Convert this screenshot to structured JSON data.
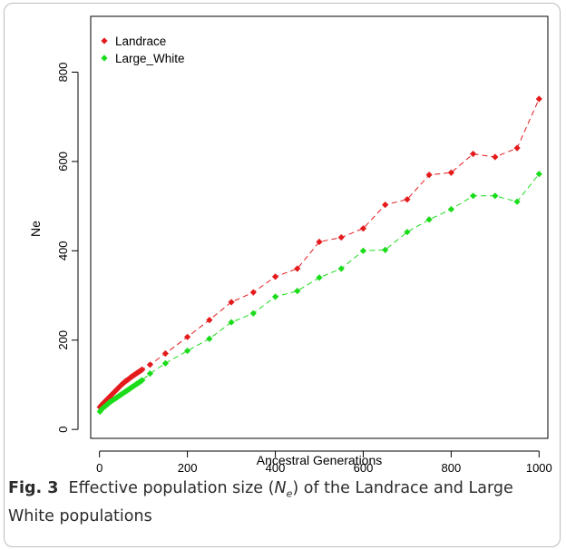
{
  "chart_data": {
    "type": "line",
    "xlabel": "Ancestral Generations",
    "ylabel": "Ne",
    "xlim": [
      -20,
      1020
    ],
    "ylim": [
      -20,
      925
    ],
    "xticks": [
      0,
      200,
      400,
      600,
      800,
      1000
    ],
    "yticks": [
      0,
      200,
      400,
      600,
      800
    ],
    "grid": false,
    "legend": "top-left",
    "series": [
      {
        "name": "Landrace",
        "color": "#e41a1c",
        "marker": "diamond",
        "line": "dashed",
        "x": [
          1,
          4,
          7,
          10,
          13,
          16,
          19,
          22,
          25,
          28,
          31,
          34,
          37,
          40,
          43,
          46,
          49,
          52,
          55,
          58,
          61,
          64,
          67,
          70,
          73,
          76,
          79,
          82,
          85,
          88,
          91,
          94,
          97,
          115,
          150,
          200,
          250,
          300,
          350,
          400,
          450,
          500,
          550,
          600,
          650,
          700,
          750,
          800,
          850,
          900,
          950,
          1000
        ],
        "y": [
          50,
          54,
          57,
          60,
          63,
          66,
          69,
          72,
          75,
          78,
          81,
          84,
          87,
          90,
          93,
          96,
          99,
          102,
          104,
          107,
          109,
          111,
          113,
          116,
          118,
          120,
          122,
          124,
          126,
          128,
          130,
          132,
          134,
          145,
          170,
          207,
          245,
          285,
          307,
          342,
          360,
          420,
          430,
          450,
          503,
          515,
          570,
          575,
          617,
          610,
          630,
          740
        ]
      },
      {
        "name": "Large_White",
        "color": "#1adc1a",
        "marker": "diamond",
        "line": "dashed",
        "x": [
          1,
          4,
          7,
          10,
          13,
          16,
          19,
          22,
          25,
          28,
          31,
          34,
          37,
          40,
          43,
          46,
          49,
          52,
          55,
          58,
          61,
          64,
          67,
          70,
          73,
          76,
          79,
          82,
          85,
          88,
          91,
          94,
          97,
          115,
          150,
          200,
          250,
          300,
          350,
          400,
          450,
          500,
          550,
          600,
          650,
          700,
          750,
          800,
          850,
          900,
          950,
          1000
        ],
        "y": [
          40,
          44,
          47,
          50,
          52,
          55,
          57,
          60,
          62,
          64,
          66,
          68,
          70,
          72,
          74,
          76,
          78,
          80,
          82,
          84,
          86,
          88,
          90,
          92,
          94,
          96,
          98,
          100,
          102,
          104,
          106,
          108,
          110,
          125,
          148,
          176,
          203,
          240,
          260,
          297,
          310,
          340,
          360,
          400,
          402,
          442,
          470,
          493,
          523,
          523,
          510,
          572
        ]
      }
    ]
  },
  "caption": {
    "label": "Fig. 3",
    "text_before": "Effective population size (",
    "ne_symbol": "N",
    "ne_subscript": "e",
    "text_after": ") of the Landrace and Large White populations"
  }
}
